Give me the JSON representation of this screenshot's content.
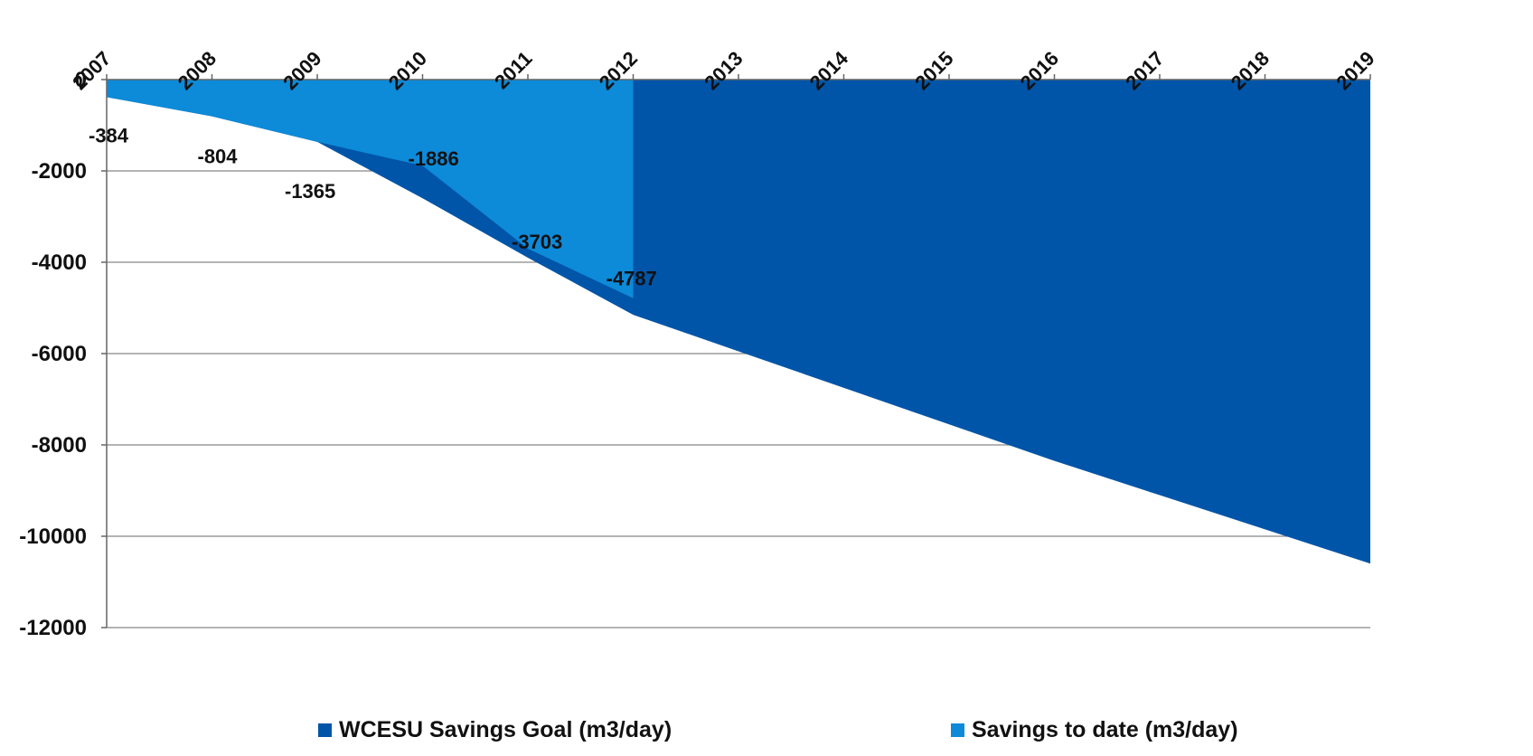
{
  "chart_data": {
    "type": "area",
    "x": [
      "2007",
      "2008",
      "2009",
      "2010",
      "2011",
      "2012",
      "2013",
      "2014",
      "2015",
      "2016",
      "2017",
      "2018",
      "2019"
    ],
    "ylim": [
      -12000,
      0
    ],
    "yticks": [
      0,
      -2000,
      -4000,
      -6000,
      -8000,
      -10000,
      -12000
    ],
    "grid": true,
    "legend_position": "bottom",
    "series": [
      {
        "name": "WCESU Savings Goal (m3/day)",
        "color": "#0055A8",
        "values": [
          -384,
          -804,
          -1365,
          -2600,
          -3900,
          -5150,
          -5950,
          -6750,
          -7550,
          -8350,
          -9100,
          -9850,
          -10600
        ]
      },
      {
        "name": "Savings to date (m3/day)",
        "color": "#0D8AD8",
        "values": [
          -384,
          -804,
          -1365,
          -1886,
          -3703,
          -4787,
          null,
          null,
          null,
          null,
          null,
          null,
          null
        ],
        "data_labels": [
          "-384",
          "-804",
          "-1365",
          "-1886",
          "-3703",
          "-4787"
        ]
      }
    ]
  }
}
